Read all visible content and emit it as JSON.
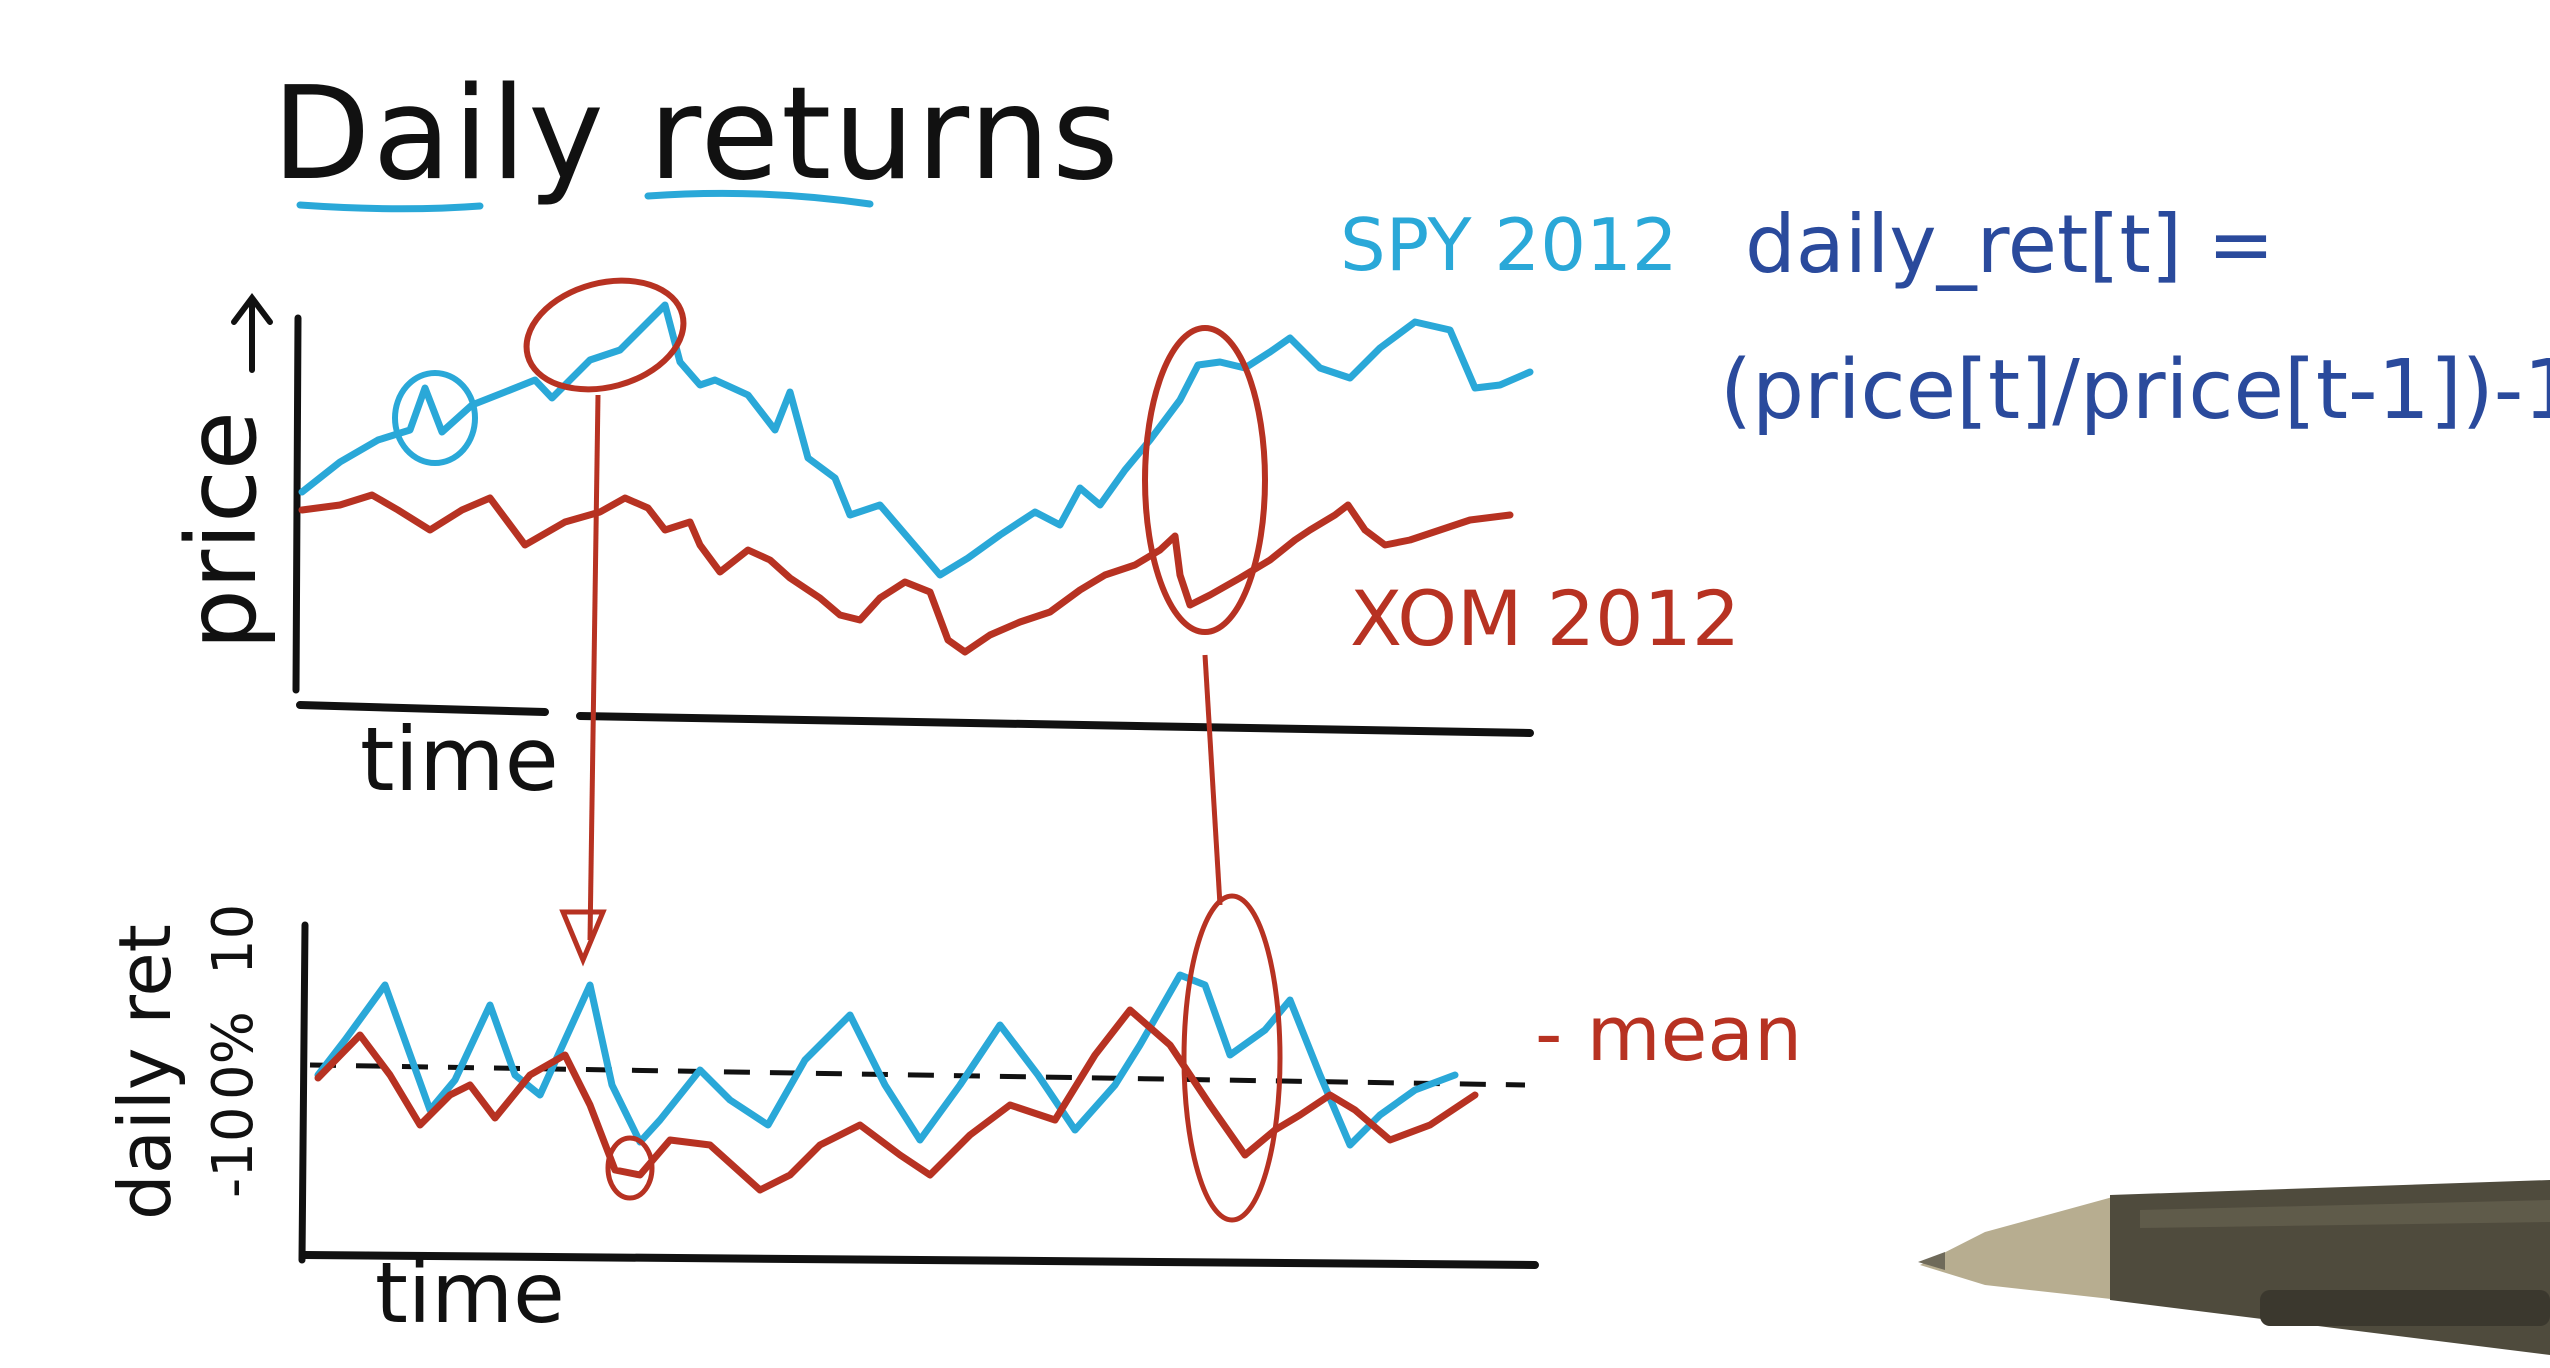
{
  "title": "Daily returns",
  "formula": {
    "line1": "daily_ret[t] =",
    "line2": "(price[t]/price[t-1])-1"
  },
  "colors": {
    "ink": "#111111",
    "spy": "#2aa8d8",
    "xom": "#b73222",
    "formula": "#2a4a9c",
    "pen_body": "#4f4b3d",
    "pen_tip": "#b7ad90"
  },
  "price_chart": {
    "ylabel": "price",
    "xlabel": "time",
    "series_labels": {
      "spy": "SPY 2012",
      "xom": "XOM 2012"
    }
  },
  "returns_chart": {
    "ylabel": "daily ret",
    "xlabel": "time",
    "tick_labels": [
      "10",
      "0%",
      "-10"
    ],
    "mean_label": "- mean"
  },
  "icons": {
    "pen": "stylus-pen-icon"
  }
}
